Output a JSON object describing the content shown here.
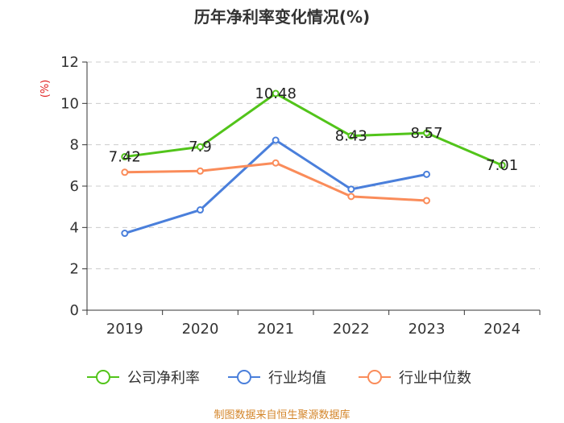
{
  "chart_data": {
    "type": "line",
    "title": "历年净利率变化情况(%)",
    "ylabel": "(%)",
    "xlabel": "",
    "categories": [
      "2019",
      "2020",
      "2021",
      "2022",
      "2023",
      "2024"
    ],
    "ylim": [
      0,
      12
    ],
    "yticks": [
      0,
      2,
      4,
      6,
      8,
      10,
      12
    ],
    "grid": true,
    "legend_position": "bottom",
    "series": [
      {
        "name": "公司净利率",
        "color": "#52c41a",
        "values": [
          7.42,
          7.9,
          10.48,
          8.43,
          8.57,
          7.01
        ],
        "data_labels": [
          "7.42",
          "7.9",
          "10.48",
          "8.43",
          "8.57",
          "7.01"
        ]
      },
      {
        "name": "行业均值",
        "color": "#4a7fdb",
        "values": [
          3.72,
          4.85,
          8.22,
          5.85,
          6.57,
          null
        ],
        "data_labels": []
      },
      {
        "name": "行业中位数",
        "color": "#fa8c5a",
        "values": [
          6.67,
          6.73,
          7.12,
          5.5,
          5.3,
          null
        ],
        "data_labels": []
      }
    ],
    "source": "制图数据来自恒生聚源数据库"
  }
}
